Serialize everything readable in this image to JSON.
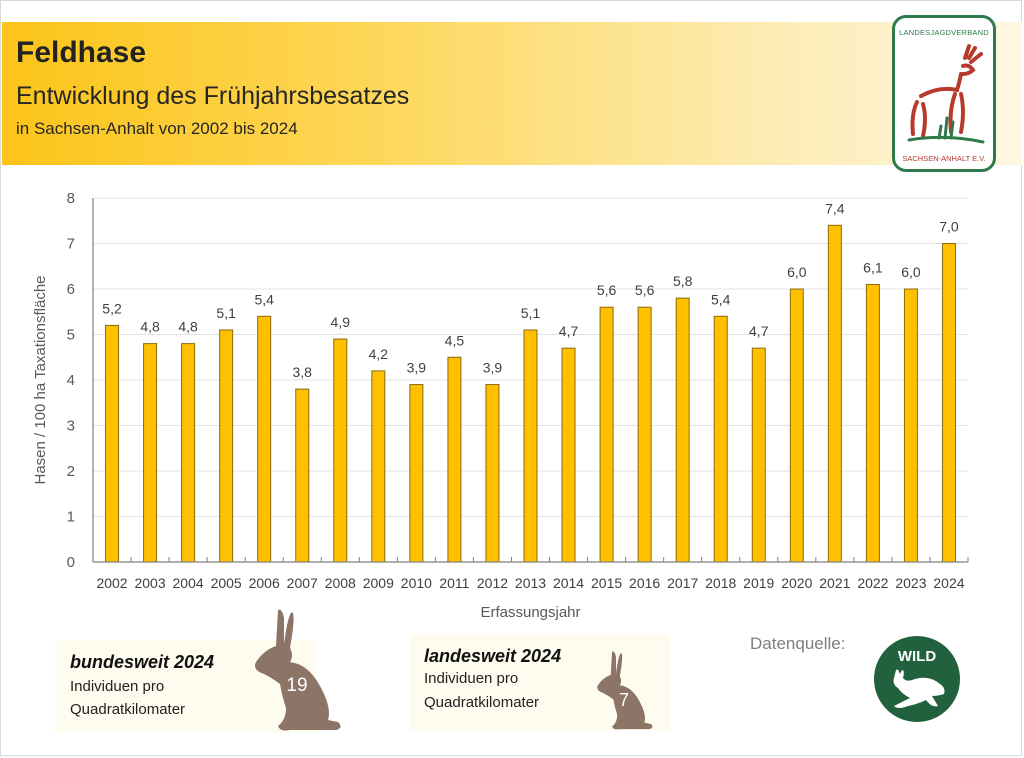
{
  "header": {
    "title": "Feldhase",
    "subtitle": "Entwicklung des Frühjahrsbesatzes",
    "subtitle2": "in Sachsen-Anhalt von 2002 bis 2024"
  },
  "logo": {
    "top_text": "LANDESJAGDVERBAND",
    "bottom_text": "SACHSEN-ANHALT E.V."
  },
  "chart_data": {
    "type": "bar",
    "title": "",
    "xlabel": "Erfassungsjahr",
    "ylabel": "Hasen / 100 ha Taxationsfläche",
    "ylim": [
      0,
      8
    ],
    "yticks": [
      "0",
      "1",
      "2",
      "3",
      "4",
      "5",
      "6",
      "7",
      "8"
    ],
    "grid": true,
    "categories": [
      "2002",
      "2003",
      "2004",
      "2005",
      "2006",
      "2007",
      "2008",
      "2009",
      "2010",
      "2011",
      "2012",
      "2013",
      "2014",
      "2015",
      "2016",
      "2017",
      "2018",
      "2019",
      "2020",
      "2021",
      "2022",
      "2023",
      "2024"
    ],
    "values": [
      5.2,
      4.8,
      4.8,
      5.1,
      5.4,
      3.8,
      4.9,
      4.2,
      3.9,
      4.5,
      3.9,
      5.1,
      4.7,
      5.6,
      5.6,
      5.8,
      5.4,
      4.7,
      6.0,
      7.4,
      6.1,
      6.0,
      7.0
    ],
    "labels": [
      "5,2",
      "4,8",
      "4,8",
      "5,1",
      "5,4",
      "3,8",
      "4,9",
      "4,2",
      "3,9",
      "4,5",
      "3,9",
      "5,1",
      "4,7",
      "5,6",
      "5,6",
      "5,8",
      "5,4",
      "4,7",
      "6,0",
      "7,4",
      "6,1",
      "6,0",
      "7,0"
    ],
    "bar_color": "#ffc000",
    "bar_edge": "#8a6a10"
  },
  "info": {
    "bund": {
      "head": "bundesweit 2024",
      "line1": "Individuen pro",
      "line2": "Quadratkilomater",
      "value": "19"
    },
    "land": {
      "head": "landesweit 2024",
      "line1": "Individuen pro",
      "line2": "Quadratkilomater",
      "value": "7"
    },
    "hare_color": "#8c7466"
  },
  "source": {
    "label": "Datenquelle:",
    "logo_text": "WILD"
  }
}
